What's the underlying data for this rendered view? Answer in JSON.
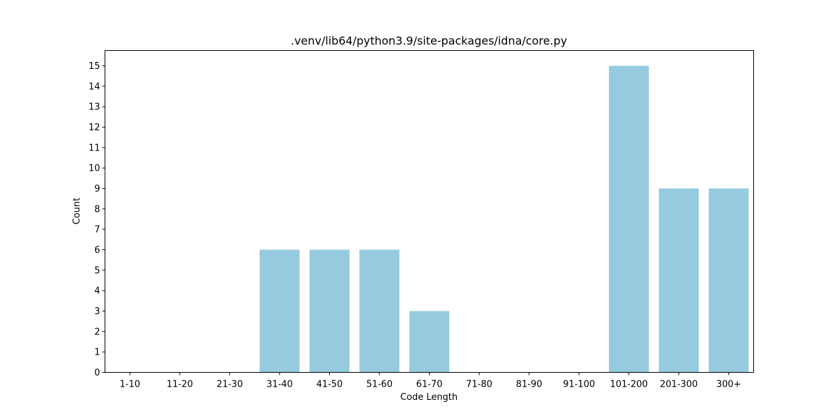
{
  "chart_data": {
    "type": "bar",
    "title": ".venv/lib64/python3.9/site-packages/idna/core.py",
    "xlabel": "Code Length",
    "ylabel": "Count",
    "categories": [
      "1-10",
      "11-20",
      "21-30",
      "31-40",
      "41-50",
      "51-60",
      "61-70",
      "71-80",
      "81-90",
      "91-100",
      "101-200",
      "201-300",
      "300+"
    ],
    "values": [
      0,
      0,
      0,
      6,
      6,
      6,
      3,
      0,
      0,
      0,
      15,
      9,
      9
    ],
    "ylim": [
      0,
      15.75
    ],
    "yticks": [
      0,
      1,
      2,
      3,
      4,
      5,
      6,
      7,
      8,
      9,
      10,
      11,
      12,
      13,
      14,
      15
    ],
    "bar_color": "#96cadf",
    "grid": false,
    "legend": "none"
  }
}
